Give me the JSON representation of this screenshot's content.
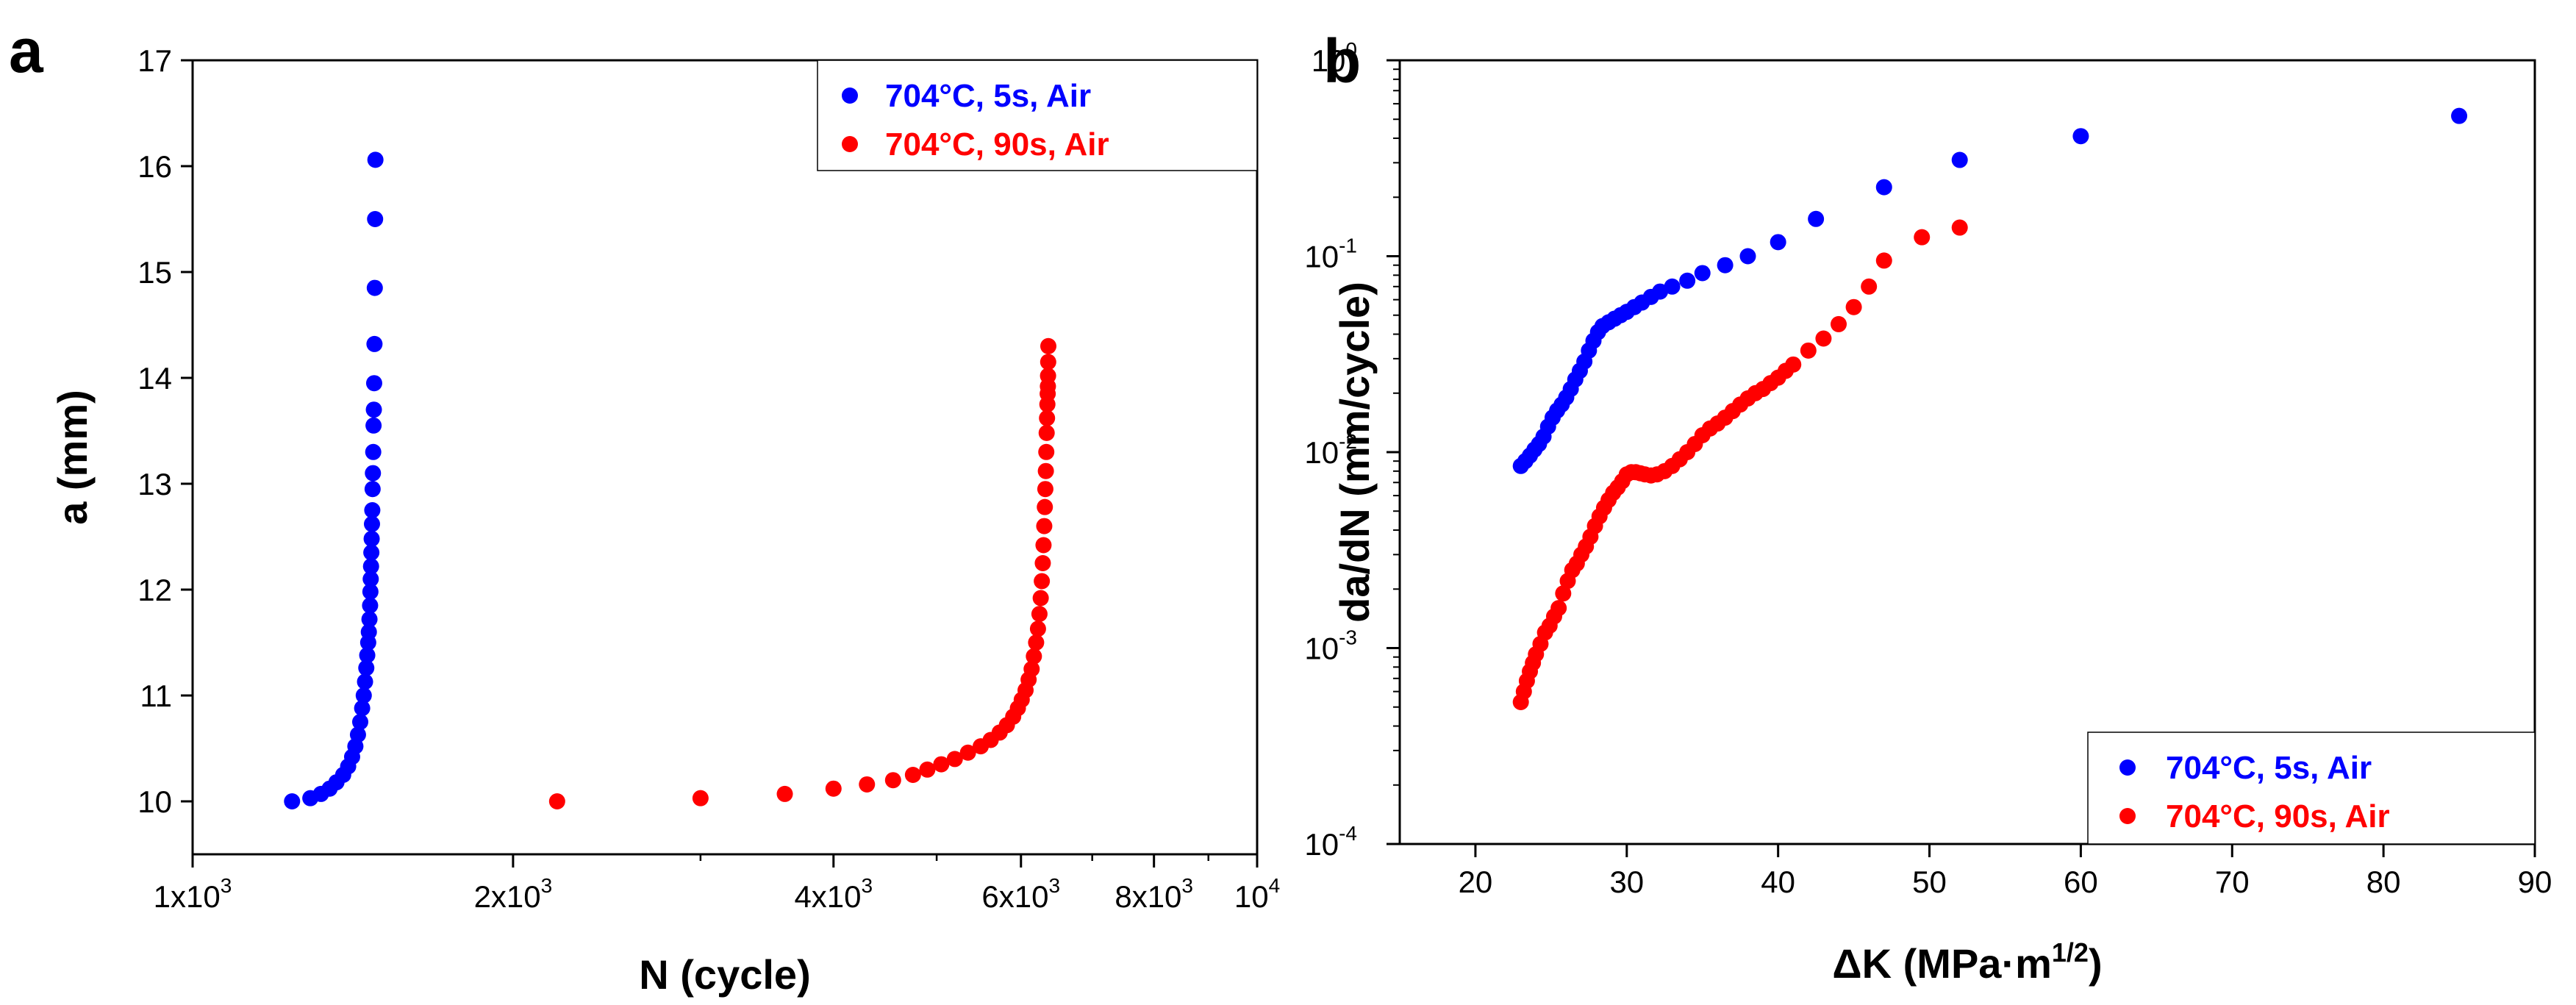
{
  "chart_data": [
    {
      "panel": "a",
      "type": "scatter",
      "title": "",
      "xlabel": "N (cycle)",
      "ylabel": "a (mm)",
      "xscale": "log",
      "xlim": [
        1000,
        10000
      ],
      "ylim": [
        9.5,
        17
      ],
      "x_tick_labels": [
        "1x10",
        "2x10",
        "4x10",
        "6x10",
        "8x10",
        "10"
      ],
      "x_tick_exponents": [
        "3",
        "3",
        "3",
        "3",
        "3",
        "4"
      ],
      "x_tick_values": [
        1000,
        2000,
        4000,
        6000,
        8000,
        10000
      ],
      "y_ticks": [
        10,
        11,
        12,
        13,
        14,
        15,
        16,
        17
      ],
      "legend_position": "top-right",
      "series": [
        {
          "name": "704°C, 5s, Air",
          "color": "#0000ff",
          "x": [
            1240,
            1290,
            1320,
            1345,
            1365,
            1385,
            1400,
            1412,
            1422,
            1430,
            1437,
            1443,
            1448,
            1452,
            1456,
            1459,
            1462,
            1464,
            1466,
            1468,
            1469,
            1470,
            1471,
            1472,
            1473,
            1474,
            1475,
            1476,
            1477,
            1478,
            1479,
            1480,
            1481,
            1482,
            1483,
            1484,
            1485
          ],
          "y": [
            10.0,
            10.03,
            10.07,
            10.12,
            10.18,
            10.25,
            10.33,
            10.42,
            10.52,
            10.63,
            10.75,
            10.88,
            11.0,
            11.13,
            11.26,
            11.38,
            11.5,
            11.6,
            11.72,
            11.85,
            11.98,
            12.1,
            12.22,
            12.35,
            12.48,
            12.62,
            12.75,
            12.95,
            13.1,
            13.3,
            13.55,
            13.7,
            13.95,
            14.32,
            14.85,
            15.5,
            16.06
          ]
        },
        {
          "name": "704°C, 90s, Air",
          "color": "#ff0000",
          "x": [
            2200,
            3000,
            3600,
            4000,
            4300,
            4550,
            4750,
            4900,
            5050,
            5200,
            5350,
            5500,
            5620,
            5730,
            5820,
            5900,
            5960,
            6010,
            6060,
            6100,
            6140,
            6170,
            6200,
            6225,
            6245,
            6262,
            6277,
            6290,
            6300,
            6310,
            6318,
            6325,
            6332,
            6338,
            6343,
            6348,
            6353,
            6357,
            6360,
            6362,
            6364,
            6366
          ],
          "y": [
            10.0,
            10.03,
            10.07,
            10.12,
            10.16,
            10.2,
            10.25,
            10.3,
            10.35,
            10.4,
            10.46,
            10.52,
            10.58,
            10.65,
            10.72,
            10.8,
            10.88,
            10.96,
            11.05,
            11.15,
            11.25,
            11.37,
            11.5,
            11.63,
            11.77,
            11.92,
            12.08,
            12.25,
            12.42,
            12.6,
            12.78,
            12.95,
            13.12,
            13.3,
            13.48,
            13.62,
            13.75,
            13.85,
            13.92,
            14.02,
            14.15,
            14.3
          ]
        }
      ]
    },
    {
      "panel": "b",
      "type": "scatter",
      "title": "",
      "xlabel": "ΔK (MPa·m",
      "xlabel_superscript": "1/2",
      "ylabel": "da/dN (mm/cycle)",
      "yscale": "log",
      "xlim": [
        15,
        90
      ],
      "ylim": [
        0.0001,
        1
      ],
      "x_ticks": [
        20,
        30,
        40,
        50,
        60,
        70,
        80,
        90
      ],
      "y_tick_labels": [
        "10",
        "10",
        "10",
        "10",
        "10"
      ],
      "y_tick_exponents": [
        "-4",
        "-3",
        "-2",
        "-1",
        "0"
      ],
      "y_tick_values": [
        0.0001,
        0.001,
        0.01,
        0.1,
        1
      ],
      "legend_position": "bottom-right",
      "series": [
        {
          "name": "704°C, 5s, Air",
          "color": "#0000ff",
          "x": [
            23.0,
            23.3,
            23.6,
            23.9,
            24.2,
            24.5,
            24.8,
            25.1,
            25.4,
            25.7,
            26.0,
            26.3,
            26.6,
            26.9,
            27.2,
            27.5,
            27.8,
            28.1,
            28.4,
            28.8,
            29.2,
            29.6,
            30.0,
            30.5,
            31.0,
            31.6,
            32.2,
            33.0,
            34.0,
            35.0,
            36.5,
            38.0,
            40.0,
            42.5,
            47.0,
            52.0,
            60.0,
            85.0
          ],
          "y": [
            0.0085,
            0.009,
            0.0096,
            0.0103,
            0.011,
            0.012,
            0.0135,
            0.015,
            0.0163,
            0.0175,
            0.019,
            0.021,
            0.0235,
            0.026,
            0.029,
            0.033,
            0.037,
            0.041,
            0.044,
            0.046,
            0.048,
            0.05,
            0.052,
            0.055,
            0.058,
            0.062,
            0.066,
            0.07,
            0.075,
            0.082,
            0.09,
            0.1,
            0.118,
            0.155,
            0.225,
            0.31,
            0.41,
            0.52
          ]
        },
        {
          "name": "704°C, 90s, Air",
          "color": "#ff0000",
          "x": [
            23.0,
            23.2,
            23.4,
            23.6,
            23.8,
            24.0,
            24.3,
            24.6,
            24.9,
            25.2,
            25.5,
            25.8,
            26.1,
            26.4,
            26.7,
            27.0,
            27.3,
            27.6,
            27.9,
            28.2,
            28.5,
            28.8,
            29.1,
            29.4,
            29.7,
            30.0,
            30.3,
            30.6,
            30.9,
            31.2,
            31.6,
            32.0,
            32.5,
            33.0,
            33.5,
            34.0,
            34.5,
            35.0,
            35.5,
            36.0,
            36.5,
            37.0,
            37.5,
            38.0,
            38.5,
            39.0,
            39.5,
            40.0,
            40.5,
            41.0,
            42.0,
            43.0,
            44.0,
            45.0,
            46.0,
            47.0,
            49.5,
            52.0
          ],
          "y": [
            0.00053,
            0.0006,
            0.00068,
            0.00076,
            0.00084,
            0.00093,
            0.00105,
            0.0012,
            0.0013,
            0.00145,
            0.0016,
            0.0019,
            0.0022,
            0.0025,
            0.0027,
            0.003,
            0.0033,
            0.0037,
            0.0042,
            0.0047,
            0.0052,
            0.0057,
            0.0062,
            0.0066,
            0.0071,
            0.0077,
            0.0079,
            0.0079,
            0.0078,
            0.0077,
            0.0076,
            0.0077,
            0.008,
            0.0085,
            0.0092,
            0.01,
            0.011,
            0.0122,
            0.0132,
            0.014,
            0.015,
            0.0162,
            0.0175,
            0.0188,
            0.02,
            0.021,
            0.0225,
            0.024,
            0.026,
            0.028,
            0.033,
            0.038,
            0.045,
            0.055,
            0.07,
            0.095,
            0.125,
            0.14
          ]
        }
      ]
    }
  ]
}
